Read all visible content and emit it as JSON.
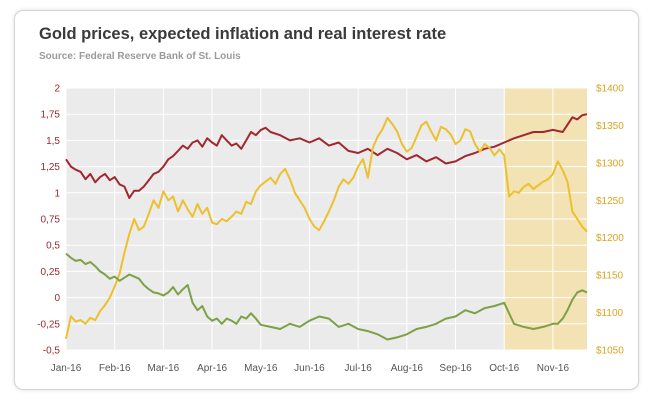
{
  "chart_data": {
    "type": "line",
    "title": "Gold prices, expected inflation and real interest rate",
    "subtitle": "Source: Federal Reserve Bank of St. Louis",
    "xlabel": "",
    "ylabel_left": "",
    "ylabel_right": "",
    "x_ticks": [
      "Jan-16",
      "Feb-16",
      "Mar-16",
      "Apr-16",
      "May-16",
      "Jun-16",
      "Jul-16",
      "Aug-16",
      "Sep-16",
      "Oct-16",
      "Nov-16"
    ],
    "x_range": [
      0,
      10.7
    ],
    "y_left_ticks": [
      "2",
      "1,75",
      "1,5",
      "1,25",
      "1",
      "0,75",
      "0,5",
      "0,25",
      "0",
      "-0,25",
      "-0,5"
    ],
    "y_left_range": [
      -0.5,
      2.0
    ],
    "y_right_ticks": [
      "$1400",
      "$1350",
      "$1300",
      "$1250",
      "$1200",
      "$1150",
      "$1100",
      "$1050"
    ],
    "y_right_range": [
      1050,
      1400
    ],
    "grid": true,
    "legend": "none",
    "highlight_span": [
      9.0,
      10.7
    ],
    "colors": {
      "expected_inflation": "#a0282e",
      "gold_price": "#ecc02e",
      "real_interest_rate": "#7ea046",
      "highlight": "#f6dfa0",
      "axis_right": "#d9a520"
    },
    "series": [
      {
        "axis": "left",
        "color_key": "expected_inflation",
        "points": [
          [
            0,
            1.32
          ],
          [
            0.1,
            1.25
          ],
          [
            0.2,
            1.22
          ],
          [
            0.3,
            1.2
          ],
          [
            0.4,
            1.13
          ],
          [
            0.5,
            1.18
          ],
          [
            0.6,
            1.1
          ],
          [
            0.7,
            1.15
          ],
          [
            0.8,
            1.18
          ],
          [
            0.9,
            1.12
          ],
          [
            1.0,
            1.15
          ],
          [
            1.1,
            1.08
          ],
          [
            1.2,
            1.06
          ],
          [
            1.3,
            0.95
          ],
          [
            1.4,
            1.02
          ],
          [
            1.5,
            1.02
          ],
          [
            1.6,
            1.06
          ],
          [
            1.7,
            1.12
          ],
          [
            1.8,
            1.18
          ],
          [
            1.9,
            1.2
          ],
          [
            2.0,
            1.25
          ],
          [
            2.1,
            1.32
          ],
          [
            2.2,
            1.35
          ],
          [
            2.3,
            1.4
          ],
          [
            2.4,
            1.45
          ],
          [
            2.5,
            1.42
          ],
          [
            2.6,
            1.48
          ],
          [
            2.7,
            1.5
          ],
          [
            2.8,
            1.44
          ],
          [
            2.9,
            1.52
          ],
          [
            3.0,
            1.48
          ],
          [
            3.1,
            1.45
          ],
          [
            3.2,
            1.55
          ],
          [
            3.3,
            1.5
          ],
          [
            3.4,
            1.45
          ],
          [
            3.5,
            1.47
          ],
          [
            3.6,
            1.42
          ],
          [
            3.7,
            1.5
          ],
          [
            3.8,
            1.58
          ],
          [
            3.9,
            1.55
          ],
          [
            4.0,
            1.6
          ],
          [
            4.1,
            1.62
          ],
          [
            4.2,
            1.58
          ],
          [
            4.4,
            1.55
          ],
          [
            4.6,
            1.5
          ],
          [
            4.8,
            1.52
          ],
          [
            5.0,
            1.48
          ],
          [
            5.2,
            1.52
          ],
          [
            5.4,
            1.45
          ],
          [
            5.6,
            1.48
          ],
          [
            5.8,
            1.4
          ],
          [
            6.0,
            1.38
          ],
          [
            6.2,
            1.42
          ],
          [
            6.4,
            1.36
          ],
          [
            6.6,
            1.42
          ],
          [
            6.8,
            1.38
          ],
          [
            7.0,
            1.32
          ],
          [
            7.2,
            1.36
          ],
          [
            7.4,
            1.3
          ],
          [
            7.6,
            1.34
          ],
          [
            7.8,
            1.28
          ],
          [
            8.0,
            1.3
          ],
          [
            8.2,
            1.35
          ],
          [
            8.4,
            1.38
          ],
          [
            8.6,
            1.42
          ],
          [
            8.8,
            1.44
          ],
          [
            9.0,
            1.48
          ],
          [
            9.2,
            1.52
          ],
          [
            9.4,
            1.55
          ],
          [
            9.6,
            1.58
          ],
          [
            9.8,
            1.58
          ],
          [
            10.0,
            1.6
          ],
          [
            10.2,
            1.58
          ],
          [
            10.3,
            1.65
          ],
          [
            10.4,
            1.72
          ],
          [
            10.5,
            1.7
          ],
          [
            10.6,
            1.74
          ],
          [
            10.7,
            1.75
          ]
        ]
      },
      {
        "axis": "right",
        "color_key": "gold_price",
        "points": [
          [
            0,
            1065
          ],
          [
            0.1,
            1095
          ],
          [
            0.2,
            1088
          ],
          [
            0.3,
            1090
          ],
          [
            0.4,
            1085
          ],
          [
            0.5,
            1093
          ],
          [
            0.6,
            1090
          ],
          [
            0.7,
            1102
          ],
          [
            0.8,
            1110
          ],
          [
            0.9,
            1120
          ],
          [
            1.0,
            1135
          ],
          [
            1.1,
            1152
          ],
          [
            1.2,
            1180
          ],
          [
            1.3,
            1205
          ],
          [
            1.4,
            1225
          ],
          [
            1.5,
            1210
          ],
          [
            1.6,
            1215
          ],
          [
            1.7,
            1232
          ],
          [
            1.8,
            1250
          ],
          [
            1.9,
            1240
          ],
          [
            2.0,
            1262
          ],
          [
            2.1,
            1250
          ],
          [
            2.2,
            1255
          ],
          [
            2.3,
            1235
          ],
          [
            2.4,
            1250
          ],
          [
            2.5,
            1238
          ],
          [
            2.6,
            1228
          ],
          [
            2.7,
            1245
          ],
          [
            2.8,
            1232
          ],
          [
            2.9,
            1240
          ],
          [
            3.0,
            1220
          ],
          [
            3.1,
            1218
          ],
          [
            3.2,
            1225
          ],
          [
            3.3,
            1222
          ],
          [
            3.4,
            1228
          ],
          [
            3.5,
            1235
          ],
          [
            3.6,
            1232
          ],
          [
            3.7,
            1248
          ],
          [
            3.8,
            1245
          ],
          [
            3.9,
            1262
          ],
          [
            4.0,
            1270
          ],
          [
            4.1,
            1275
          ],
          [
            4.2,
            1280
          ],
          [
            4.3,
            1272
          ],
          [
            4.4,
            1285
          ],
          [
            4.5,
            1292
          ],
          [
            4.6,
            1278
          ],
          [
            4.7,
            1260
          ],
          [
            4.8,
            1250
          ],
          [
            4.9,
            1240
          ],
          [
            5.0,
            1225
          ],
          [
            5.1,
            1215
          ],
          [
            5.2,
            1210
          ],
          [
            5.3,
            1222
          ],
          [
            5.4,
            1235
          ],
          [
            5.5,
            1250
          ],
          [
            5.6,
            1268
          ],
          [
            5.7,
            1278
          ],
          [
            5.8,
            1272
          ],
          [
            5.9,
            1280
          ],
          [
            6.0,
            1295
          ],
          [
            6.1,
            1305
          ],
          [
            6.2,
            1280
          ],
          [
            6.3,
            1320
          ],
          [
            6.4,
            1335
          ],
          [
            6.5,
            1345
          ],
          [
            6.6,
            1360
          ],
          [
            6.7,
            1352
          ],
          [
            6.8,
            1342
          ],
          [
            6.9,
            1325
          ],
          [
            7.0,
            1315
          ],
          [
            7.1,
            1320
          ],
          [
            7.2,
            1335
          ],
          [
            7.3,
            1350
          ],
          [
            7.4,
            1355
          ],
          [
            7.5,
            1342
          ],
          [
            7.6,
            1330
          ],
          [
            7.7,
            1348
          ],
          [
            7.8,
            1345
          ],
          [
            7.9,
            1338
          ],
          [
            8.0,
            1325
          ],
          [
            8.1,
            1330
          ],
          [
            8.2,
            1345
          ],
          [
            8.3,
            1342
          ],
          [
            8.4,
            1325
          ],
          [
            8.5,
            1315
          ],
          [
            8.6,
            1325
          ],
          [
            8.7,
            1320
          ],
          [
            8.8,
            1310
          ],
          [
            8.9,
            1318
          ],
          [
            9.0,
            1310
          ],
          [
            9.1,
            1255
          ],
          [
            9.2,
            1262
          ],
          [
            9.3,
            1260
          ],
          [
            9.4,
            1268
          ],
          [
            9.5,
            1272
          ],
          [
            9.6,
            1265
          ],
          [
            9.7,
            1270
          ],
          [
            9.8,
            1275
          ],
          [
            9.9,
            1278
          ],
          [
            10.0,
            1285
          ],
          [
            10.1,
            1302
          ],
          [
            10.2,
            1290
          ],
          [
            10.3,
            1275
          ],
          [
            10.4,
            1235
          ],
          [
            10.5,
            1225
          ],
          [
            10.6,
            1215
          ],
          [
            10.7,
            1208
          ]
        ]
      },
      {
        "axis": "left",
        "color_key": "real_interest_rate",
        "points": [
          [
            0,
            0.42
          ],
          [
            0.1,
            0.38
          ],
          [
            0.2,
            0.35
          ],
          [
            0.3,
            0.36
          ],
          [
            0.4,
            0.32
          ],
          [
            0.5,
            0.34
          ],
          [
            0.6,
            0.3
          ],
          [
            0.7,
            0.25
          ],
          [
            0.8,
            0.22
          ],
          [
            0.9,
            0.18
          ],
          [
            1.0,
            0.2
          ],
          [
            1.1,
            0.16
          ],
          [
            1.2,
            0.19
          ],
          [
            1.3,
            0.22
          ],
          [
            1.4,
            0.2
          ],
          [
            1.5,
            0.18
          ],
          [
            1.6,
            0.12
          ],
          [
            1.7,
            0.08
          ],
          [
            1.8,
            0.05
          ],
          [
            1.9,
            0.04
          ],
          [
            2.0,
            0.02
          ],
          [
            2.1,
            0.05
          ],
          [
            2.2,
            0.1
          ],
          [
            2.3,
            0.03
          ],
          [
            2.4,
            0.08
          ],
          [
            2.5,
            0.12
          ],
          [
            2.6,
            -0.05
          ],
          [
            2.7,
            -0.12
          ],
          [
            2.8,
            -0.08
          ],
          [
            2.9,
            -0.18
          ],
          [
            3.0,
            -0.22
          ],
          [
            3.1,
            -0.2
          ],
          [
            3.2,
            -0.25
          ],
          [
            3.3,
            -0.2
          ],
          [
            3.4,
            -0.22
          ],
          [
            3.5,
            -0.25
          ],
          [
            3.6,
            -0.18
          ],
          [
            3.7,
            -0.2
          ],
          [
            3.8,
            -0.15
          ],
          [
            3.9,
            -0.2
          ],
          [
            4.0,
            -0.26
          ],
          [
            4.2,
            -0.28
          ],
          [
            4.4,
            -0.3
          ],
          [
            4.6,
            -0.25
          ],
          [
            4.8,
            -0.28
          ],
          [
            5.0,
            -0.22
          ],
          [
            5.2,
            -0.18
          ],
          [
            5.4,
            -0.2
          ],
          [
            5.6,
            -0.28
          ],
          [
            5.8,
            -0.25
          ],
          [
            6.0,
            -0.3
          ],
          [
            6.2,
            -0.32
          ],
          [
            6.4,
            -0.35
          ],
          [
            6.6,
            -0.4
          ],
          [
            6.8,
            -0.38
          ],
          [
            7.0,
            -0.35
          ],
          [
            7.2,
            -0.3
          ],
          [
            7.4,
            -0.28
          ],
          [
            7.6,
            -0.25
          ],
          [
            7.8,
            -0.2
          ],
          [
            8.0,
            -0.18
          ],
          [
            8.2,
            -0.12
          ],
          [
            8.4,
            -0.15
          ],
          [
            8.6,
            -0.1
          ],
          [
            8.8,
            -0.08
          ],
          [
            9.0,
            -0.05
          ],
          [
            9.2,
            -0.25
          ],
          [
            9.4,
            -0.28
          ],
          [
            9.6,
            -0.3
          ],
          [
            9.8,
            -0.28
          ],
          [
            10.0,
            -0.25
          ],
          [
            10.1,
            -0.25
          ],
          [
            10.2,
            -0.2
          ],
          [
            10.3,
            -0.12
          ],
          [
            10.4,
            -0.02
          ],
          [
            10.5,
            0.05
          ],
          [
            10.6,
            0.07
          ],
          [
            10.7,
            0.05
          ]
        ]
      }
    ]
  }
}
